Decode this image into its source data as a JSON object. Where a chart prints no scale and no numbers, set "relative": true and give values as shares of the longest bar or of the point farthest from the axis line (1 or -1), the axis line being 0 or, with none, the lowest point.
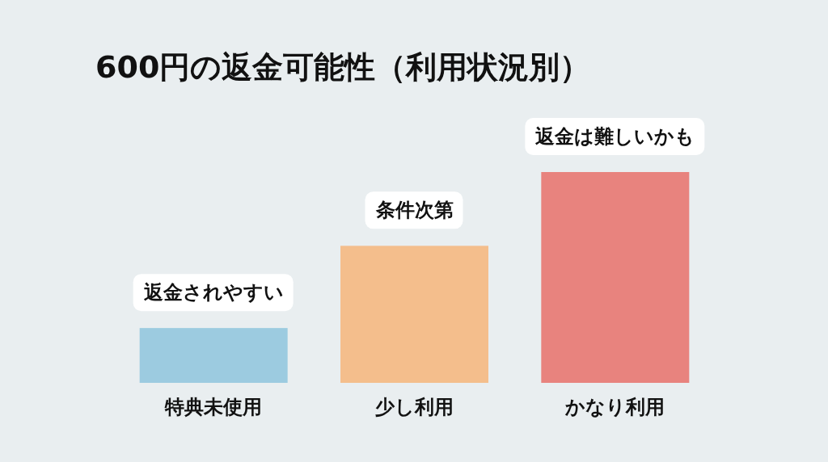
{
  "chart_data": {
    "type": "bar",
    "title": "600円の返金可能性（利用状況別）",
    "relative": true,
    "categories": [
      "特典未使用",
      "少し利用",
      "かなり利用"
    ],
    "values": [
      0.26,
      0.65,
      1
    ],
    "colors": [
      "#9ccbe0",
      "#f4be8c",
      "#e8837e"
    ],
    "annotations": [
      {
        "text": "返金されやすい",
        "x": "特典未使用",
        "y": 0.26
      },
      {
        "text": "条件次第",
        "x": "少し利用",
        "y": 0.65
      },
      {
        "text": "返金は難しいかも",
        "x": "かなり利用",
        "y": 1
      }
    ]
  }
}
